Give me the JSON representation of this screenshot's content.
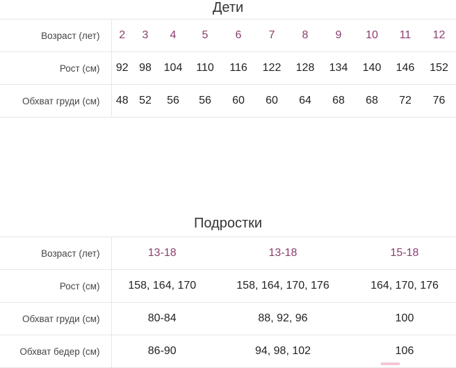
{
  "kids": {
    "title": "Дети",
    "rows": [
      {
        "label": "Возраст (лет)",
        "values": [
          "2",
          "3",
          "4",
          "5",
          "6",
          "7",
          "8",
          "9",
          "10",
          "11",
          "12"
        ]
      },
      {
        "label": "Рост (см)",
        "values": [
          "92",
          "98",
          "104",
          "110",
          "116",
          "122",
          "128",
          "134",
          "140",
          "146",
          "152"
        ]
      },
      {
        "label": "Обхват груди (см)",
        "values": [
          "48",
          "52",
          "56",
          "56",
          "60",
          "60",
          "64",
          "68",
          "68",
          "72",
          "76"
        ]
      }
    ]
  },
  "teens": {
    "title": "Подростки",
    "rows": [
      {
        "label": "Возраст (лет)",
        "values": [
          "13-18",
          "13-18",
          "15-18"
        ]
      },
      {
        "label": "Рост (см)",
        "values": [
          "158, 164, 170",
          "158, 164, 170, 176",
          "164, 170, 176"
        ]
      },
      {
        "label": "Обхват груди (см)",
        "values": [
          "80-84",
          "88, 92, 96",
          "100"
        ]
      },
      {
        "label": "Обхват бедер (см)",
        "values": [
          "86-90",
          "94, 98, 102",
          "106"
        ]
      }
    ]
  },
  "colors": {
    "age_values": "#8a3d6e",
    "borders": "#e6e6e6"
  }
}
